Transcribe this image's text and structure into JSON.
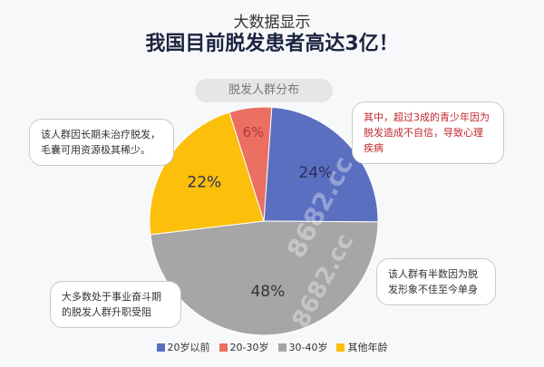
{
  "header": {
    "title": "大数据显示",
    "subtitle": "我国目前脱发患者高达3亿！"
  },
  "chart_data": {
    "type": "pie",
    "title": "脱发人群分布",
    "slices": [
      {
        "name": "20岁以前",
        "value": 24,
        "label": "24%",
        "color": "#5b6fc1"
      },
      {
        "name": "30-40岁",
        "value": 48,
        "label": "48%",
        "color": "#a6a6a6"
      },
      {
        "name": "其他年龄",
        "value": 22,
        "label": "22%",
        "color": "#fbbf0c"
      },
      {
        "name": "20-30岁",
        "value": 6,
        "label": "6%",
        "color": "#eb6f63"
      }
    ],
    "legend": {
      "position": "bottom",
      "items": [
        {
          "name": "20岁以前",
          "color": "#5b6fc1"
        },
        {
          "name": "20-30岁",
          "color": "#eb6f63"
        },
        {
          "name": "30-40岁",
          "color": "#a6a6a6"
        },
        {
          "name": "其他年龄",
          "color": "#fbbf0c"
        }
      ]
    }
  },
  "callouts": {
    "top_right": "其中，超过3成的青少年因为脱发造成不自信，导致心理疾病",
    "top_left": "该人群因长期未治疗脱发，毛囊可用资源极其稀少。",
    "bottom_right": "该人群有半数因为脱发形象不佳至今单身",
    "bottom_left": "大多数处于事业奋斗期的脱发人群升职受阻"
  },
  "watermark": "8682.cc"
}
